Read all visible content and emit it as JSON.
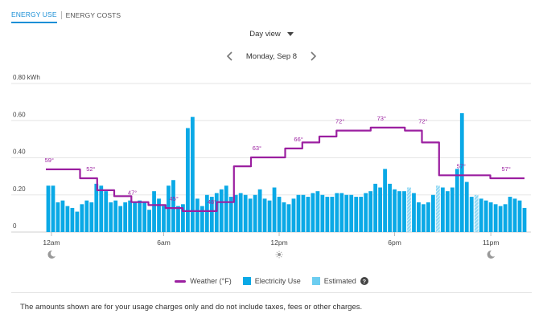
{
  "tabs": [
    {
      "label": "ENERGY USE",
      "active": true
    },
    {
      "label": "ENERGY COSTS",
      "active": false
    }
  ],
  "view_selector": {
    "label": "Day view"
  },
  "date_nav": {
    "date": "Monday, Sep 8"
  },
  "legend": {
    "weather": "Weather (°F)",
    "electricity": "Electricity Use",
    "estimated": "Estimated"
  },
  "footnote": "The amounts shown are for your usage charges only and do not include taxes, fees or other charges.",
  "colors": {
    "actual": "#0aa9e6",
    "estimated": "#6ccdf0",
    "weather": "#9b1fa0",
    "tab_active": "#1a8fd6"
  },
  "chart_data": {
    "type": "bar",
    "ylabel": "kWh",
    "ylim": [
      0,
      0.8
    ],
    "y_ticks": [
      {
        "value": 0.8,
        "label": "0.80 kWh"
      },
      {
        "value": 0.6,
        "label": "0.60"
      },
      {
        "value": 0.4,
        "label": "0.40"
      },
      {
        "value": 0.2,
        "label": "0.20"
      },
      {
        "value": 0,
        "label": "0"
      }
    ],
    "x_ticks": [
      {
        "index": 0,
        "label": "12am",
        "icon": "moon-icon"
      },
      {
        "index": 24,
        "label": "6am",
        "icon": ""
      },
      {
        "index": 48,
        "label": "12pm",
        "icon": "sun-icon"
      },
      {
        "index": 72,
        "label": "6pm",
        "icon": ""
      },
      {
        "index": 92,
        "label": "11pm",
        "icon": "moon-icon"
      }
    ],
    "grid": true,
    "series": [
      {
        "name": "Electricity Use",
        "interval_minutes": 15,
        "values": [
          0.25,
          0.25,
          0.16,
          0.17,
          0.14,
          0.13,
          0.11,
          0.15,
          0.17,
          0.16,
          0.26,
          0.25,
          0.22,
          0.16,
          0.17,
          0.14,
          0.16,
          0.17,
          0.16,
          0.17,
          0.16,
          0.12,
          0.22,
          0.18,
          0.14,
          0.25,
          0.28,
          0.14,
          0.15,
          0.56,
          0.62,
          0.18,
          0.14,
          0.2,
          0.19,
          0.21,
          0.23,
          0.25,
          0.19,
          0.2,
          0.21,
          0.2,
          0.18,
          0.2,
          0.23,
          0.18,
          0.17,
          0.24,
          0.19,
          0.16,
          0.15,
          0.18,
          0.2,
          0.2,
          0.19,
          0.21,
          0.22,
          0.2,
          0.19,
          0.19,
          0.21,
          0.21,
          0.2,
          0.2,
          0.19,
          0.19,
          0.21,
          0.22,
          0.26,
          0.24,
          0.34,
          0.26,
          0.23,
          0.22,
          0.22,
          0.24,
          0.21,
          0.16,
          0.15,
          0.16,
          0.2,
          0.25,
          0.24,
          0.22,
          0.24,
          0.34,
          0.64,
          0.27,
          0.19,
          0.2,
          0.18,
          0.17,
          0.16,
          0.15,
          0.14,
          0.15,
          0.19,
          0.18,
          0.17,
          0.13
        ],
        "estimated_indices": [
          75,
          81,
          89
        ]
      }
    ],
    "weather": {
      "name": "Weather (°F)",
      "hourly": [
        59,
        59,
        56,
        52,
        50,
        48,
        47,
        46,
        45,
        45,
        48,
        60,
        63,
        63,
        66,
        68,
        70,
        72,
        72,
        73,
        73,
        72,
        68,
        57,
        57,
        57,
        56,
        56
      ],
      "labels": [
        {
          "index": 1,
          "text": "59°"
        },
        {
          "index": 13,
          "text": "52°"
        },
        {
          "index": 25,
          "text": "47°"
        },
        {
          "index": 37,
          "text": "45°"
        },
        {
          "index": 48,
          "text": "48°"
        },
        {
          "index": 61,
          "text": "63°"
        },
        {
          "index": 73,
          "text": "66°"
        },
        {
          "index": 85,
          "text": "72°"
        },
        {
          "index": 97,
          "text": "73°"
        },
        {
          "index": 109,
          "text": "72°"
        },
        {
          "index": 120,
          "text": "57°"
        },
        {
          "index": 133,
          "text": "57°"
        }
      ]
    }
  }
}
